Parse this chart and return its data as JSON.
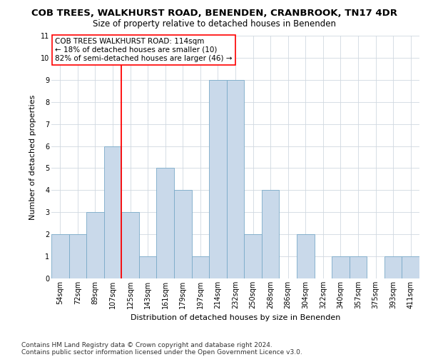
{
  "title": "COB TREES, WALKHURST ROAD, BENENDEN, CRANBROOK, TN17 4DR",
  "subtitle": "Size of property relative to detached houses in Benenden",
  "xlabel": "Distribution of detached houses by size in Benenden",
  "ylabel": "Number of detached properties",
  "categories": [
    "54sqm",
    "72sqm",
    "89sqm",
    "107sqm",
    "125sqm",
    "143sqm",
    "161sqm",
    "179sqm",
    "197sqm",
    "214sqm",
    "232sqm",
    "250sqm",
    "268sqm",
    "286sqm",
    "304sqm",
    "322sqm",
    "340sqm",
    "357sqm",
    "375sqm",
    "393sqm",
    "411sqm"
  ],
  "values": [
    2,
    2,
    3,
    6,
    3,
    1,
    5,
    4,
    1,
    9,
    9,
    2,
    4,
    0,
    2,
    0,
    1,
    1,
    0,
    1,
    1
  ],
  "bar_color": "#c9d9ea",
  "bar_edge_color": "#7aaac8",
  "annotation_title": "COB TREES WALKHURST ROAD: 114sqm",
  "annotation_line1": "← 18% of detached houses are smaller (10)",
  "annotation_line2": "82% of semi-detached houses are larger (46) →",
  "red_line_index": 3.5,
  "ylim": [
    0,
    11
  ],
  "yticks": [
    0,
    1,
    2,
    3,
    4,
    5,
    6,
    7,
    8,
    9,
    10,
    11
  ],
  "footnote1": "Contains HM Land Registry data © Crown copyright and database right 2024.",
  "footnote2": "Contains public sector information licensed under the Open Government Licence v3.0.",
  "title_fontsize": 9.5,
  "subtitle_fontsize": 8.5,
  "xlabel_fontsize": 8,
  "ylabel_fontsize": 8,
  "tick_fontsize": 7,
  "annotation_fontsize": 7.5,
  "footnote_fontsize": 6.5,
  "grid_color": "#d0d8e0",
  "background_color": "#ffffff"
}
